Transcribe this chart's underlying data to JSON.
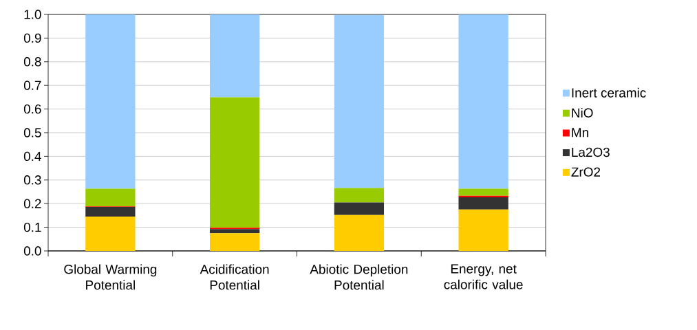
{
  "chart_data": {
    "type": "bar",
    "stacked": true,
    "categories": [
      "Global Warming Potential",
      "Acidification Potential",
      "Abiotic Depletion Potential",
      "Energy, net calorific value"
    ],
    "series": [
      {
        "name": "ZrO2",
        "color": "#ffcc00",
        "values": [
          0.145,
          0.075,
          0.152,
          0.175
        ]
      },
      {
        "name": "La2O3",
        "color": "#333333",
        "values": [
          0.041,
          0.017,
          0.053,
          0.052
        ]
      },
      {
        "name": "Mn",
        "color": "#ff0000",
        "values": [
          0.002,
          0.006,
          null,
          0.006
        ]
      },
      {
        "name": "NiO",
        "color": "#99cc00",
        "values": [
          0.075,
          0.552,
          0.061,
          0.03
        ]
      },
      {
        "name": "Inert ceramic",
        "color": "#99ccff",
        "values": [
          0.737,
          0.35,
          0.732,
          0.737
        ]
      }
    ],
    "ylim": [
      0,
      1
    ],
    "yticks": [
      {
        "value": 0,
        "label": "0.0"
      },
      0.1,
      0.2,
      0.3,
      0.4,
      0.5,
      0.6,
      0.7,
      0.8,
      0.9,
      {
        "value": 1,
        "label": "1.0"
      }
    ],
    "grid": "y",
    "legend": "right"
  }
}
